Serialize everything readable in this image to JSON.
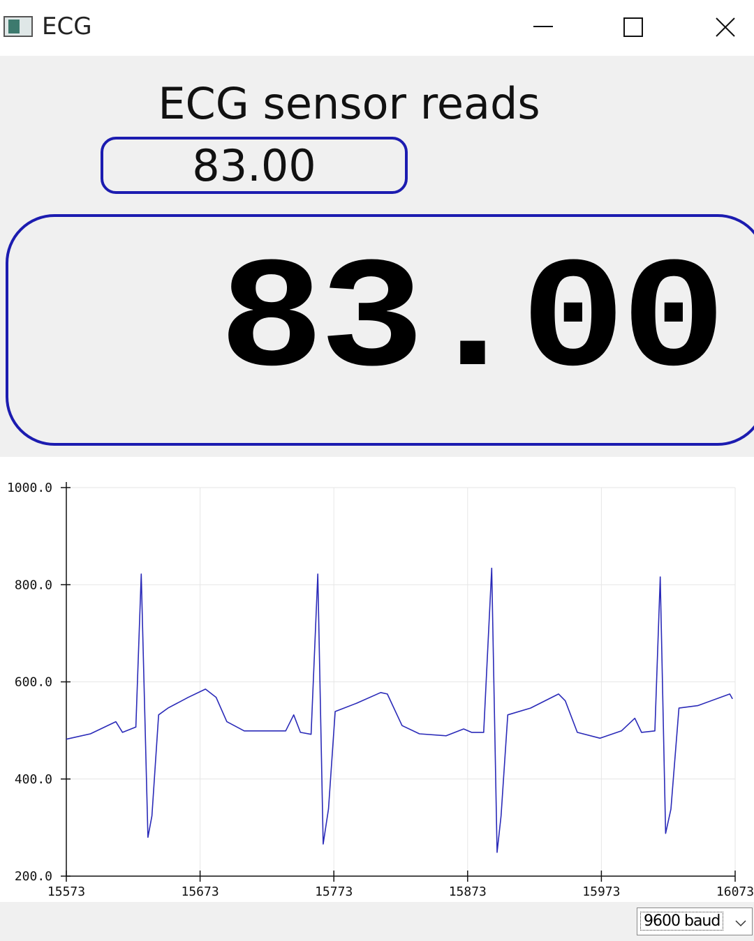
{
  "window": {
    "title": "ECG"
  },
  "label": "ECG sensor reads",
  "readout": "83.00",
  "lcd": "83.00",
  "chart_data": {
    "type": "line",
    "x": [
      15573,
      15591,
      15610,
      15615,
      15625,
      15629,
      15634,
      15637,
      15642,
      15649,
      15664,
      15677,
      15685,
      15693,
      15706,
      15722,
      15737,
      15743,
      15748,
      15756,
      15761,
      15765,
      15769,
      15774,
      15790,
      15808,
      15813,
      15824,
      15837,
      15857,
      15870,
      15876,
      15885,
      15891,
      15895,
      15898,
      15903,
      15920,
      15941,
      15946,
      15955,
      15972,
      15988,
      15998,
      16003,
      16013,
      16017,
      16021,
      16025,
      16031,
      16045,
      16069,
      16071
    ],
    "series": [
      {
        "color": "#2a2ab8",
        "values": [
          482,
          493,
          518,
          496,
          507,
          822,
          280,
          324,
          532,
          546,
          568,
          585,
          568,
          518,
          499,
          499,
          499,
          532,
          496,
          492,
          822,
          266,
          338,
          539,
          556,
          578,
          575,
          510,
          493,
          489,
          503,
          496,
          496,
          834,
          249,
          324,
          532,
          546,
          575,
          561,
          496,
          484,
          499,
          525,
          496,
          499,
          816,
          288,
          338,
          546,
          551,
          575,
          565
        ]
      }
    ],
    "xlim": [
      15573,
      16073
    ],
    "xticks": [
      15573,
      15673,
      15773,
      15873,
      15973,
      16073
    ],
    "ylim": [
      200,
      1000
    ],
    "yticks": [
      {
        "value": 200,
        "label": "200.0"
      },
      {
        "value": 400,
        "label": "400.0"
      },
      {
        "value": 600,
        "label": "600.0"
      },
      {
        "value": 800,
        "label": "800.0"
      },
      {
        "value": 1000,
        "label": "1000.0"
      }
    ],
    "grid": true
  },
  "baud": "9600 baud"
}
